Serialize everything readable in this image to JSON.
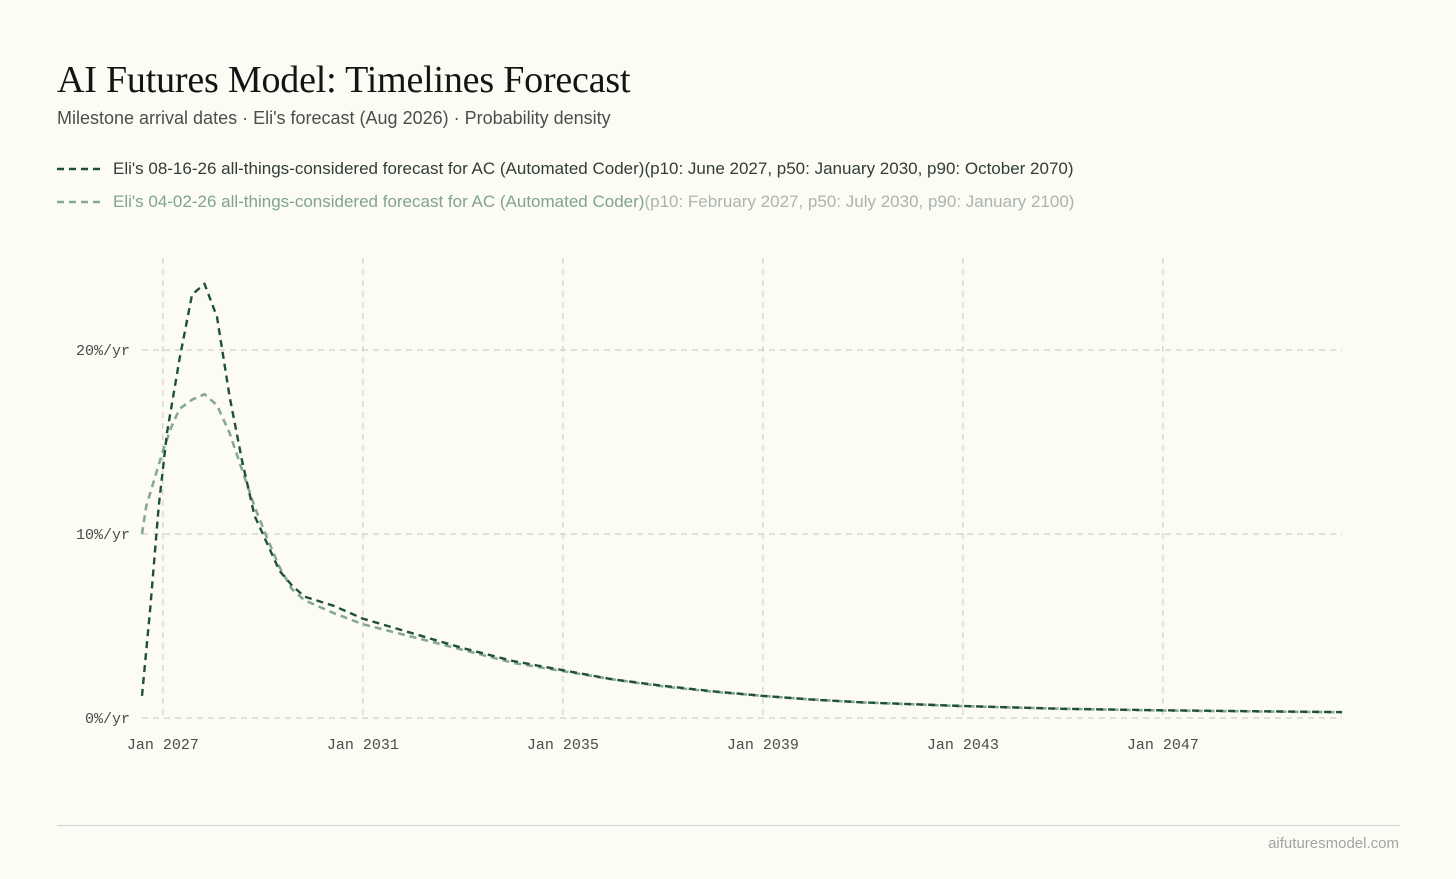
{
  "header": {
    "title": "AI Futures Model: Timelines Forecast",
    "subtitle": "Milestone arrival dates · Eli's forecast (Aug 2026) · Probability density"
  },
  "legend": [
    {
      "label": "Eli's 08-16-26 all-things-considered forecast for AC (Automated Coder)",
      "detail": " (p10: June 2027, p50: January 2030, p90: October 2070)",
      "color": "#1f5133"
    },
    {
      "label": "Eli's 04-02-26 all-things-considered forecast for AC (Automated Coder)",
      "detail": " (p10: February 2027, p50: July 2030, p90: January 2100)",
      "color": "#86a896"
    }
  ],
  "chart_data": {
    "type": "line",
    "title": "AI Futures Model: Timelines Forecast",
    "subtitle": "Milestone arrival dates · Eli's forecast (Aug 2026) · Probability density",
    "xlabel": "",
    "ylabel": "",
    "x_ticks": [
      "Jan 2027",
      "Jan 2031",
      "Jan 2035",
      "Jan 2039",
      "Jan 2043",
      "Jan 2047"
    ],
    "y_ticks": [
      "0%/yr",
      "10%/yr",
      "20%/yr"
    ],
    "xlim": [
      "2026-08",
      "2050-08"
    ],
    "ylim": [
      0,
      25
    ],
    "grid": true,
    "line_style": "dashed",
    "series": [
      {
        "name": "Eli's 08-16-26 all-things-considered forecast for AC (Automated Coder)",
        "color": "#1f5133",
        "points": [
          [
            "2026-08",
            1.2
          ],
          [
            "2026-10",
            6.0
          ],
          [
            "2026-12",
            11.5
          ],
          [
            "2027-02",
            15.5
          ],
          [
            "2027-05",
            19.5
          ],
          [
            "2027-08",
            23.0
          ],
          [
            "2027-11",
            23.6
          ],
          [
            "2028-02",
            21.8
          ],
          [
            "2028-05",
            17.5
          ],
          [
            "2028-08",
            14.0
          ],
          [
            "2028-11",
            11.0
          ],
          [
            "2029-02",
            9.5
          ],
          [
            "2029-05",
            8.0
          ],
          [
            "2029-08",
            7.2
          ],
          [
            "2029-11",
            6.6
          ],
          [
            "2030-06",
            6.1
          ],
          [
            "2031-01",
            5.4
          ],
          [
            "2032-01",
            4.6
          ],
          [
            "2033-01",
            3.8
          ],
          [
            "2034-01",
            3.1
          ],
          [
            "2035-01",
            2.6
          ],
          [
            "2036-01",
            2.1
          ],
          [
            "2037-01",
            1.75
          ],
          [
            "2038-01",
            1.45
          ],
          [
            "2039-01",
            1.2
          ],
          [
            "2040-01",
            1.0
          ],
          [
            "2041-01",
            0.85
          ],
          [
            "2043-01",
            0.65
          ],
          [
            "2045-01",
            0.5
          ],
          [
            "2047-01",
            0.42
          ],
          [
            "2050-08",
            0.32
          ]
        ]
      },
      {
        "name": "Eli's 04-02-26 all-things-considered forecast for AC (Automated Coder)",
        "color": "#86a896",
        "points": [
          [
            "2026-08",
            10.0
          ],
          [
            "2026-09",
            11.5
          ],
          [
            "2026-11",
            13.0
          ],
          [
            "2027-01",
            14.5
          ],
          [
            "2027-03",
            15.8
          ],
          [
            "2027-05",
            16.8
          ],
          [
            "2027-08",
            17.3
          ],
          [
            "2027-11",
            17.6
          ],
          [
            "2028-02",
            17.0
          ],
          [
            "2028-05",
            15.5
          ],
          [
            "2028-08",
            13.5
          ],
          [
            "2028-11",
            11.5
          ],
          [
            "2029-02",
            9.8
          ],
          [
            "2029-05",
            8.2
          ],
          [
            "2029-08",
            7.0
          ],
          [
            "2029-11",
            6.4
          ],
          [
            "2030-06",
            5.7
          ],
          [
            "2031-01",
            5.1
          ],
          [
            "2032-01",
            4.4
          ],
          [
            "2033-01",
            3.7
          ],
          [
            "2034-01",
            3.0
          ],
          [
            "2035-01",
            2.55
          ],
          [
            "2036-01",
            2.1
          ],
          [
            "2037-01",
            1.72
          ],
          [
            "2038-01",
            1.43
          ],
          [
            "2039-01",
            1.2
          ],
          [
            "2040-01",
            1.0
          ],
          [
            "2041-01",
            0.85
          ],
          [
            "2043-01",
            0.64
          ],
          [
            "2045-01",
            0.5
          ],
          [
            "2047-01",
            0.41
          ],
          [
            "2050-08",
            0.31
          ]
        ]
      }
    ]
  },
  "footer": {
    "site": "aifuturesmodel.com"
  }
}
